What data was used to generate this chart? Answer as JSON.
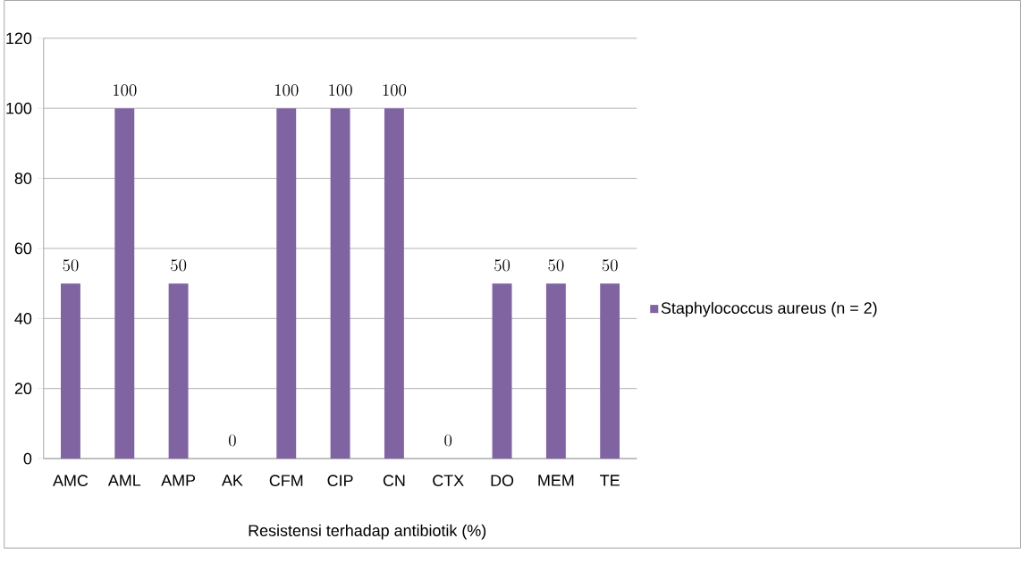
{
  "chart_data": {
    "type": "bar",
    "categories": [
      "AMC",
      "AML",
      "AMP",
      "AK",
      "CFM",
      "CIP",
      "CN",
      "CTX",
      "DO",
      "MEM",
      "TE"
    ],
    "series": [
      {
        "name": "Staphylococcus aureus (n = 2)",
        "color": "#8064a2",
        "values": [
          50,
          100,
          50,
          0,
          100,
          100,
          100,
          0,
          50,
          50,
          50
        ]
      }
    ],
    "xlabel": "Resistensi terhadap antibiotik (%)",
    "ylim": [
      0,
      120
    ],
    "yticks": [
      0,
      20,
      40,
      60,
      80,
      100,
      120
    ],
    "grid": "y",
    "legend": "right",
    "data_labels": true
  }
}
